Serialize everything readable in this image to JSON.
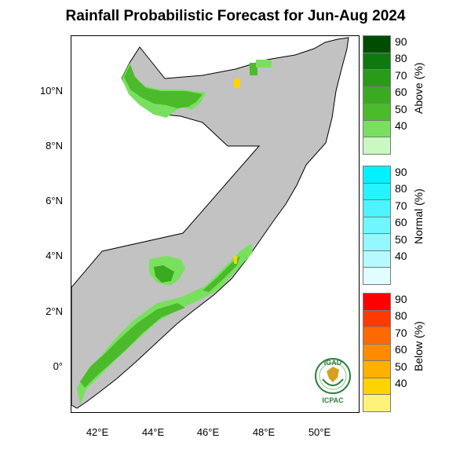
{
  "title": "Rainfall Probabilistic Forecast for Jun-Aug 2024",
  "lat_labels": [
    "10°N",
    "8°N",
    "6°N",
    "4°N",
    "2°N",
    "0°"
  ],
  "lon_labels": [
    "42°E",
    "44°E",
    "46°E",
    "48°E",
    "50°E"
  ],
  "legends": [
    {
      "title": "Above (%)",
      "ticks": [
        "90",
        "80",
        "70",
        "60",
        "50",
        "40"
      ],
      "colors": [
        "#004d00",
        "#0e7a0e",
        "#2a9a19",
        "#3aab20",
        "#4cbb2b",
        "#79e05f",
        "#c8f9c0"
      ]
    },
    {
      "title": "Normal (%)",
      "ticks": [
        "90",
        "80",
        "70",
        "60",
        "50",
        "40"
      ],
      "colors": [
        "#00f1ff",
        "#26f3ff",
        "#4cf4ff",
        "#70f6ff",
        "#93f8ff",
        "#b6faff",
        "#e0fdff"
      ]
    },
    {
      "title": "Below (%)",
      "ticks": [
        "90",
        "80",
        "70",
        "60",
        "50",
        "40"
      ],
      "colors": [
        "#ff0000",
        "#ff3a00",
        "#ff6a00",
        "#ff8c00",
        "#ffb000",
        "#ffd200",
        "#fff27a"
      ]
    }
  ],
  "logo": {
    "top_text": "IGAD",
    "bottom_text": "ICPAC"
  },
  "colors": {
    "land_neutral": "#c2c2c2",
    "above_40": "#79e05f",
    "above_50": "#4cbb2b",
    "above_60": "#3aab20",
    "below_40": "#ffd200"
  }
}
